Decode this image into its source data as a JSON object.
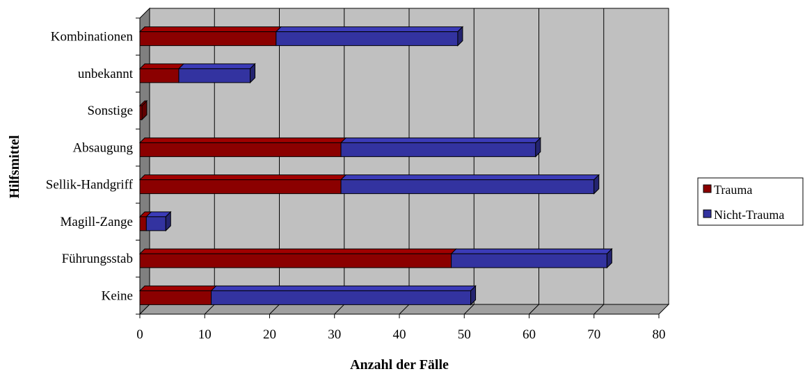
{
  "chart_data": {
    "type": "bar",
    "orientation": "horizontal",
    "stacked": true,
    "three_d": true,
    "categories": [
      "Keine",
      "Führungsstab",
      "Magill-Zange",
      "Sellik-Handgriff",
      "Absaugung",
      "Sonstige",
      "unbekannt",
      "Kombinationen"
    ],
    "series": [
      {
        "name": "Trauma",
        "values": [
          11,
          48,
          1,
          31,
          31,
          0,
          6,
          21
        ]
      },
      {
        "name": "Nicht-Trauma",
        "values": [
          40,
          24,
          3,
          39,
          30,
          0,
          11,
          28
        ]
      }
    ],
    "xlabel": "Anzahl der Fälle",
    "ylabel": "Hilfsmittel",
    "xlim": [
      0,
      80
    ],
    "xticks": [
      "0",
      "10",
      "20",
      "30",
      "40",
      "50",
      "60",
      "70",
      "80"
    ],
    "grid": true,
    "legend": "right",
    "colors": {
      "Trauma": "#8b0000",
      "Nicht-Trauma": "#3333a0",
      "plot_background": "#c0c0c0"
    }
  }
}
